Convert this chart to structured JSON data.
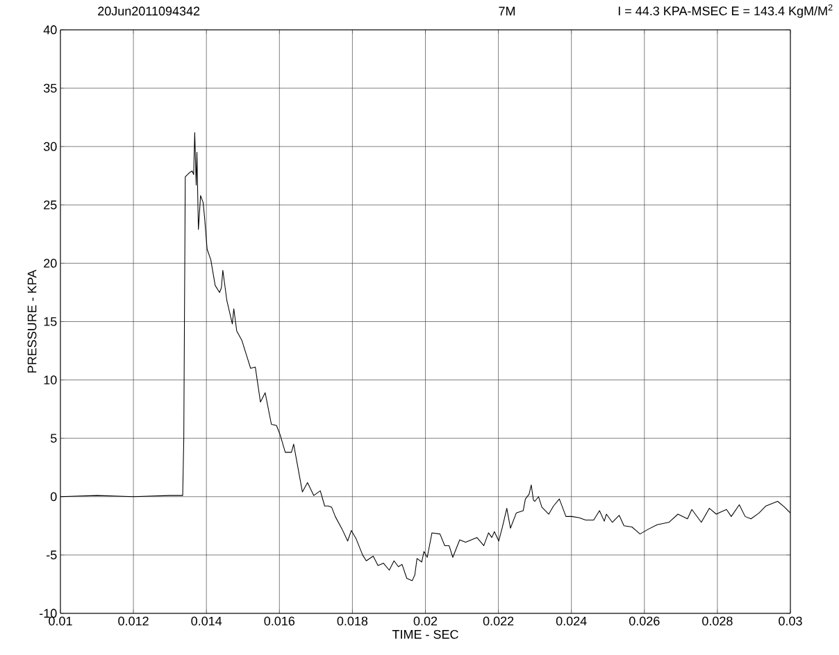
{
  "chart_data": {
    "type": "line",
    "xlabel": "TIME - SEC",
    "ylabel": "PRESSURE - KPA",
    "annotations": [
      "20Jun2011094342",
      "7M",
      "I =  44.3 KPA-MSEC E =  143.4 KgM/M$^{2}$"
    ],
    "xlim": [
      0.01,
      0.03
    ],
    "ylim": [
      -10,
      40
    ],
    "xticks": [
      0.01,
      0.012,
      0.014,
      0.016,
      0.018,
      0.02,
      0.022,
      0.024,
      0.026,
      0.028,
      0.03
    ],
    "yticks": [
      -10,
      -5,
      0,
      5,
      10,
      15,
      20,
      25,
      30,
      35,
      40
    ],
    "grid": true,
    "line_style": "solid",
    "series": [
      {
        "color": "#000000",
        "x": [
          0.01,
          0.011,
          0.012,
          0.013,
          0.01335,
          0.01338,
          0.01342,
          0.01355,
          0.01361,
          0.01365,
          0.01368,
          0.01372,
          0.01374,
          0.01378,
          0.01384,
          0.01391,
          0.01395,
          0.01402,
          0.01412,
          0.01424,
          0.01436,
          0.01441,
          0.01445,
          0.01456,
          0.01471,
          0.01475,
          0.01483,
          0.01497,
          0.01511,
          0.01521,
          0.01534,
          0.01548,
          0.01561,
          0.01578,
          0.01592,
          0.01602,
          0.01616,
          0.01633,
          0.01639,
          0.01663,
          0.01677,
          0.01694,
          0.01712,
          0.01724,
          0.01734,
          0.01743,
          0.01753,
          0.01772,
          0.01787,
          0.01797,
          0.0181,
          0.01828,
          0.01838,
          0.01857,
          0.0187,
          0.01885,
          0.01901,
          0.01914,
          0.01926,
          0.01936,
          0.01949,
          0.01964,
          0.01971,
          0.01977,
          0.0199,
          0.01996,
          0.02005,
          0.02018,
          0.0204,
          0.02053,
          0.02065,
          0.02075,
          0.02094,
          0.0211,
          0.02141,
          0.0216,
          0.02173,
          0.02182,
          0.02189,
          0.02201,
          0.02211,
          0.02223,
          0.02233,
          0.02249,
          0.02268,
          0.02274,
          0.02284,
          0.0229,
          0.02296,
          0.023,
          0.0231,
          0.02319,
          0.02338,
          0.02351,
          0.02367,
          0.02385,
          0.02401,
          0.0242,
          0.02439,
          0.02461,
          0.02477,
          0.0249,
          0.02496,
          0.02512,
          0.02531,
          0.02544,
          0.02566,
          0.02588,
          0.0261,
          0.02635,
          0.02667,
          0.02692,
          0.02718,
          0.0273,
          0.02756,
          0.02778,
          0.02797,
          0.0281,
          0.02825,
          0.02838,
          0.0286,
          0.02876,
          0.02892,
          0.02914,
          0.02933,
          0.02965,
          0.02984,
          0.03
        ],
        "values": [
          0.0,
          0.1,
          0.0,
          0.1,
          0.1,
          5.0,
          27.4,
          27.8,
          27.9,
          27.6,
          31.2,
          26.7,
          29.5,
          22.9,
          25.8,
          25.2,
          23.9,
          21.2,
          20.3,
          18.1,
          17.5,
          17.9,
          19.4,
          16.8,
          14.8,
          16.1,
          14.2,
          13.4,
          12.0,
          11.0,
          11.1,
          8.1,
          8.9,
          6.2,
          6.1,
          5.3,
          3.8,
          3.8,
          4.5,
          0.4,
          1.2,
          0.1,
          0.5,
          -0.8,
          -0.8,
          -0.9,
          -1.7,
          -2.8,
          -3.8,
          -2.9,
          -3.6,
          -5.0,
          -5.5,
          -5.1,
          -5.9,
          -5.7,
          -6.3,
          -5.5,
          -6.0,
          -5.8,
          -7.0,
          -7.2,
          -6.7,
          -5.3,
          -5.6,
          -4.7,
          -5.2,
          -3.1,
          -3.2,
          -4.2,
          -4.2,
          -5.2,
          -3.7,
          -3.9,
          -3.5,
          -4.2,
          -3.1,
          -3.5,
          -3.0,
          -3.8,
          -2.6,
          -1.0,
          -2.7,
          -1.4,
          -1.2,
          -0.2,
          0.2,
          1.0,
          -0.3,
          -0.4,
          0.0,
          -0.9,
          -1.5,
          -0.8,
          -0.2,
          -1.7,
          -1.7,
          -1.8,
          -2.0,
          -2.0,
          -1.2,
          -2.1,
          -1.5,
          -2.2,
          -1.6,
          -2.5,
          -2.6,
          -3.2,
          -2.8,
          -2.4,
          -2.2,
          -1.5,
          -1.9,
          -1.1,
          -2.2,
          -1.0,
          -1.5,
          -1.3,
          -1.1,
          -1.7,
          -0.7,
          -1.7,
          -1.9,
          -1.4,
          -0.8,
          -0.4,
          -0.9,
          -1.4
        ]
      }
    ]
  }
}
